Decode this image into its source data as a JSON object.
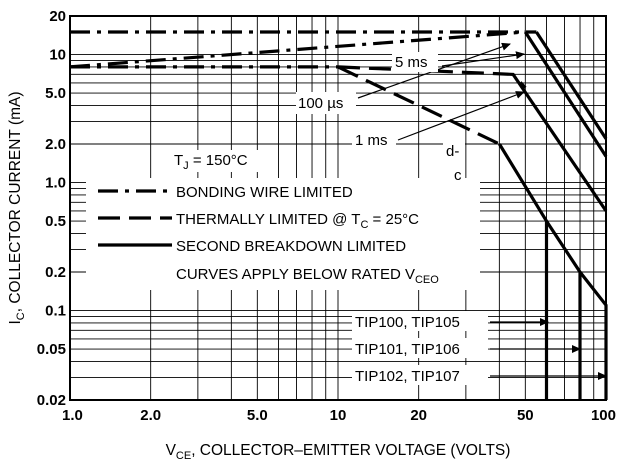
{
  "chart_data": {
    "type": "line",
    "scale": {
      "x": "log",
      "y": "log"
    },
    "xlim": [
      1.0,
      100
    ],
    "ylim": [
      0.02,
      20
    ],
    "grid": true,
    "x_ticks": [
      {
        "value": 1.0,
        "label": "1.0"
      },
      {
        "value": 2.0,
        "label": "2.0"
      },
      {
        "value": 5.0,
        "label": "5.0"
      },
      {
        "value": 10,
        "label": "10"
      },
      {
        "value": 20,
        "label": "20"
      },
      {
        "value": 50,
        "label": "50"
      },
      {
        "value": 100,
        "label": "100"
      }
    ],
    "y_ticks": [
      {
        "value": 0.02,
        "label": "0.02"
      },
      {
        "value": 0.05,
        "label": "0.05"
      },
      {
        "value": 0.1,
        "label": "0.1"
      },
      {
        "value": 0.2,
        "label": "0.2"
      },
      {
        "value": 0.5,
        "label": "0.5"
      },
      {
        "value": 1.0,
        "label": "1.0"
      },
      {
        "value": 2.0,
        "label": "2.0"
      },
      {
        "value": 5.0,
        "label": "5.0"
      },
      {
        "value": 10,
        "label": "10"
      },
      {
        "value": 20,
        "label": "20"
      }
    ],
    "xlabel": {
      "main": "V",
      "sub": "CE",
      "rest": ", COLLECTOR–EMITTER VOLTAGE (VOLTS)"
    },
    "ylabel": {
      "main": "I",
      "sub": "C",
      "rest": ", COLLECTOR CURRENT (mA)"
    },
    "series": [
      {
        "style": "dashdot",
        "points": [
          [
            1.0,
            15
          ],
          [
            55,
            15
          ]
        ]
      },
      {
        "style": "solid",
        "points": [
          [
            55,
            15
          ],
          [
            100,
            2.2
          ]
        ]
      },
      {
        "style": "dashdot",
        "points": [
          [
            1.0,
            8
          ],
          [
            50,
            15
          ]
        ]
      },
      {
        "style": "solid",
        "points": [
          [
            50,
            15
          ],
          [
            100,
            1.6
          ]
        ]
      },
      {
        "style": "dashdot",
        "points": [
          [
            1.0,
            8
          ],
          [
            10,
            8
          ]
        ]
      },
      {
        "style": "dash",
        "points": [
          [
            10,
            8
          ],
          [
            45,
            7
          ],
          [
            50,
            5.5
          ]
        ]
      },
      {
        "style": "solid",
        "points": [
          [
            45,
            7
          ],
          [
            100,
            0.6
          ]
        ]
      },
      {
        "style": "dash",
        "points": [
          [
            10,
            8
          ],
          [
            40,
            2
          ]
        ]
      },
      {
        "style": "solid",
        "points": [
          [
            40,
            2
          ],
          [
            60,
            0.5
          ],
          [
            60,
            0.02
          ]
        ]
      },
      {
        "style": "solid",
        "points": [
          [
            60,
            0.5
          ],
          [
            80,
            0.2
          ],
          [
            80,
            0.02
          ]
        ]
      },
      {
        "style": "solid",
        "points": [
          [
            80,
            0.2
          ],
          [
            100,
            0.11
          ],
          [
            100,
            0.02
          ]
        ]
      }
    ],
    "annotations": {
      "t5ms": "5 ms",
      "t100us": "100 µs",
      "t1ms": "1 ms",
      "dc_top": "d-",
      "dc_bot": "c",
      "tj_main": "T",
      "tj_sub": "J",
      "tj_rest": " = 150°C",
      "tip100": "TIP100, TIP105",
      "tip101": "TIP101, TIP106",
      "tip102": "TIP102, TIP107"
    },
    "legend": {
      "placement": "center-left",
      "entries": [
        {
          "style": "dashdot",
          "text": "BONDING WIRE LIMITED"
        },
        {
          "style": "dash",
          "text": "THERMALLY LIMITED @ T",
          "sub": "C",
          "rest": " = 25°C"
        },
        {
          "style": "solid",
          "text": "SECOND BREAKDOWN LIMITED"
        }
      ],
      "note": {
        "text": "CURVES APPLY BELOW RATED V",
        "sub": "CEO"
      }
    }
  }
}
